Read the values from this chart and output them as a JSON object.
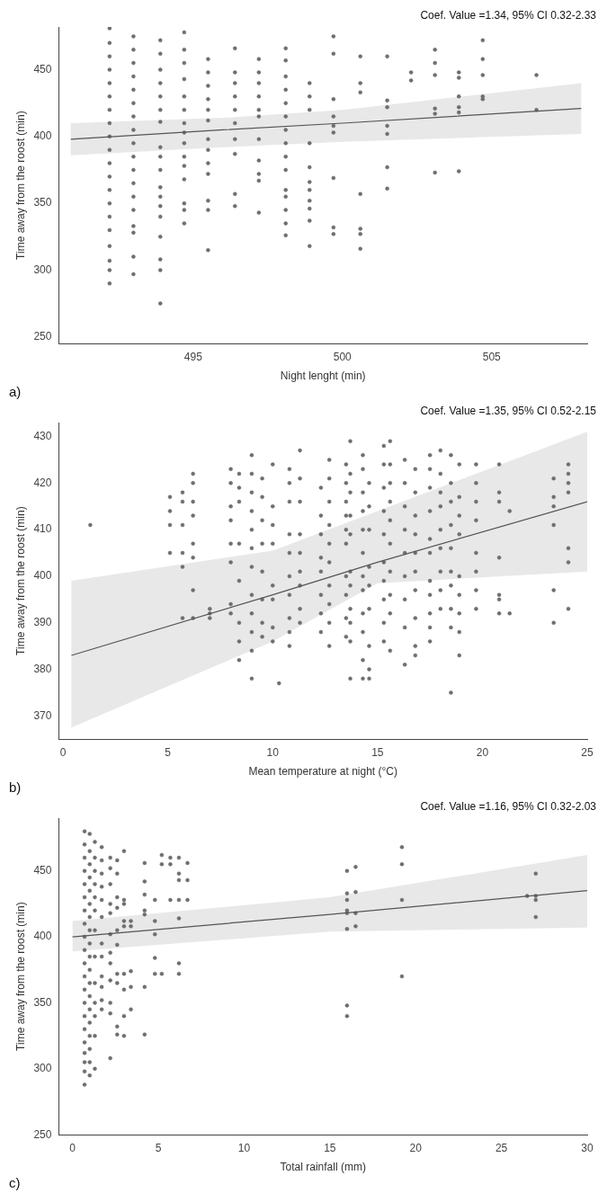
{
  "chart_data": [
    {
      "type": "scatter",
      "xlabel": "Night lenght (min)",
      "ylabel": "Time away from the roost (min)",
      "xlim": [
        490.5,
        508.2
      ],
      "xticks": [
        495,
        500,
        505
      ],
      "ylim": [
        245,
        482
      ],
      "yticks": [
        250,
        300,
        350,
        400,
        450
      ],
      "grid": false,
      "legend": false,
      "annotations": [
        "Coef. Value =1.34, 95% CI 0.32-2.33",
        "a)"
      ],
      "series": [
        {
          "type": "scatter",
          "marker": "circle",
          "color": "#6e6e6e",
          "x": [
            492.2,
            492.2,
            492.2,
            492.2,
            492.2,
            492.2,
            492.2,
            492.2,
            492.2,
            492.2,
            492.2,
            492.2,
            492.2,
            492.2,
            492.2,
            492.2,
            492.2,
            492.2,
            492.2,
            492.2,
            493.0,
            493.0,
            493.0,
            493.0,
            493.0,
            493.0,
            493.0,
            493.0,
            493.0,
            493.0,
            493.0,
            493.0,
            493.0,
            493.0,
            493.0,
            493.0,
            493.0,
            493.0,
            493.9,
            493.9,
            493.9,
            493.9,
            493.9,
            493.9,
            493.9,
            493.9,
            493.9,
            493.9,
            493.9,
            493.9,
            493.9,
            493.9,
            493.9,
            493.9,
            493.9,
            493.9,
            494.7,
            494.7,
            494.7,
            494.7,
            494.7,
            494.7,
            494.7,
            494.7,
            494.7,
            494.7,
            494.7,
            494.7,
            494.7,
            494.7,
            494.7,
            495.5,
            495.5,
            495.5,
            495.5,
            495.5,
            495.5,
            495.5,
            495.5,
            495.5,
            495.5,
            495.5,
            495.5,
            495.5,
            496.4,
            496.4,
            496.4,
            496.4,
            496.4,
            496.4,
            496.4,
            496.4,
            496.4,
            496.4,
            497.2,
            497.2,
            497.2,
            497.2,
            497.2,
            497.2,
            497.2,
            497.2,
            497.2,
            497.2,
            497.2,
            498.1,
            498.1,
            498.1,
            498.1,
            498.1,
            498.1,
            498.1,
            498.1,
            498.1,
            498.1,
            498.1,
            498.1,
            498.1,
            498.1,
            498.1,
            498.9,
            498.9,
            498.9,
            498.9,
            498.9,
            498.9,
            498.9,
            498.9,
            498.9,
            498.9,
            498.9,
            499.7,
            499.7,
            499.7,
            499.7,
            499.7,
            499.7,
            499.7,
            499.7,
            499.7,
            500.6,
            500.6,
            500.6,
            500.6,
            500.6,
            500.6,
            500.6,
            501.5,
            501.5,
            501.5,
            501.5,
            501.5,
            501.5,
            501.5,
            502.3,
            502.3,
            503.1,
            503.1,
            503.1,
            503.1,
            503.1,
            503.1,
            503.9,
            503.9,
            503.9,
            503.9,
            503.9,
            503.9,
            504.7,
            504.7,
            504.7,
            504.7,
            504.7,
            506.5,
            506.5
          ],
          "values": [
            481,
            470,
            460,
            450,
            440,
            430,
            420,
            410,
            400,
            390,
            380,
            370,
            360,
            350,
            340,
            330,
            318,
            307,
            300,
            290,
            475,
            465,
            455,
            445,
            435,
            425,
            415,
            405,
            395,
            385,
            375,
            365,
            355,
            345,
            333,
            328,
            310,
            297,
            472,
            462,
            450,
            440,
            430,
            420,
            411,
            392,
            385,
            375,
            362,
            355,
            348,
            340,
            325,
            308,
            300,
            275,
            478,
            465,
            455,
            443,
            430,
            420,
            410,
            403,
            395,
            385,
            378,
            368,
            350,
            345,
            335,
            458,
            448,
            438,
            428,
            420,
            412,
            398,
            390,
            380,
            372,
            352,
            345,
            315,
            466,
            448,
            440,
            430,
            420,
            410,
            398,
            387,
            357,
            348,
            458,
            448,
            440,
            430,
            420,
            415,
            398,
            382,
            372,
            367,
            343,
            466,
            457,
            445,
            435,
            425,
            415,
            405,
            395,
            385,
            375,
            360,
            355,
            345,
            335,
            326,
            440,
            430,
            420,
            395,
            377,
            366,
            360,
            352,
            346,
            337,
            318,
            475,
            462,
            428,
            415,
            408,
            403,
            369,
            332,
            327,
            460,
            440,
            433,
            357,
            331,
            327,
            316,
            460,
            427,
            422,
            408,
            402,
            377,
            361,
            448,
            442,
            465,
            455,
            446,
            421,
            417,
            373,
            448,
            444,
            430,
            422,
            418,
            374,
            472,
            458,
            446,
            430,
            428,
            446,
            420
          ]
        },
        {
          "type": "line",
          "color": "#555555",
          "x": [
            490.9,
            496,
            500,
            508
          ],
          "values": [
            398,
            405,
            410,
            421
          ],
          "lower": [
            386,
            392,
            396,
            402
          ],
          "upper": [
            410,
            414,
            420,
            440
          ]
        }
      ]
    },
    {
      "type": "scatter",
      "xlabel": "Mean temperature at night (°C)",
      "ylabel": "Time away from the roost (min)",
      "xlim": [
        -0.2,
        25
      ],
      "xticks": [
        0,
        5,
        10,
        15,
        20,
        25
      ],
      "ylim": [
        365,
        433
      ],
      "yticks": [
        370,
        380,
        390,
        400,
        410,
        420,
        430
      ],
      "grid": false,
      "legend": false,
      "annotations": [
        "Coef. Value =1.35, 95% CI 0.52-2.15",
        "b)"
      ],
      "series": [
        {
          "type": "scatter",
          "marker": "circle",
          "color": "#6e6e6e",
          "x": [
            1.3,
            5.1,
            5.1,
            5.1,
            5.1,
            5.7,
            5.7,
            5.7,
            5.7,
            5.7,
            5.7,
            6.2,
            6.2,
            6.2,
            6.2,
            6.2,
            6.2,
            6.2,
            6.2,
            7.0,
            7.0,
            7.0,
            8.0,
            8.0,
            8.0,
            8.0,
            8.0,
            8.0,
            8.0,
            8.0,
            8.4,
            8.4,
            8.4,
            8.4,
            8.4,
            8.4,
            8.4,
            8.4,
            9.0,
            9.0,
            9.0,
            9.0,
            9.0,
            9.0,
            9.0,
            9.0,
            9.0,
            9.0,
            9.0,
            9.0,
            9.5,
            9.5,
            9.5,
            9.5,
            9.5,
            9.5,
            9.5,
            9.5,
            10.0,
            10.0,
            10.0,
            10.0,
            10.0,
            10.0,
            10.0,
            10.0,
            10.3,
            10.8,
            10.8,
            10.8,
            10.8,
            10.8,
            10.8,
            10.8,
            10.8,
            10.8,
            10.8,
            11.3,
            11.3,
            11.3,
            11.3,
            11.3,
            11.3,
            11.3,
            11.3,
            11.3,
            12.3,
            12.3,
            12.3,
            12.3,
            12.3,
            12.3,
            12.3,
            12.3,
            12.7,
            12.7,
            12.7,
            12.7,
            12.7,
            12.7,
            12.7,
            12.7,
            12.7,
            12.7,
            13.5,
            13.5,
            13.5,
            13.5,
            13.5,
            13.5,
            13.5,
            13.5,
            13.5,
            13.5,
            13.7,
            13.7,
            13.7,
            13.7,
            13.7,
            13.7,
            13.7,
            13.7,
            13.7,
            13.7,
            13.7,
            14.3,
            14.3,
            14.3,
            14.3,
            14.3,
            14.3,
            14.3,
            14.3,
            14.3,
            14.3,
            14.3,
            14.3,
            14.6,
            14.6,
            14.6,
            14.6,
            14.6,
            14.6,
            14.6,
            14.6,
            14.6,
            15.3,
            15.3,
            15.3,
            15.3,
            15.3,
            15.3,
            15.3,
            15.3,
            15.3,
            15.3,
            15.6,
            15.6,
            15.6,
            15.6,
            15.6,
            15.6,
            15.6,
            15.6,
            15.6,
            15.6,
            16.3,
            16.3,
            16.3,
            16.3,
            16.3,
            16.3,
            16.3,
            16.3,
            16.3,
            16.8,
            16.8,
            16.8,
            16.8,
            16.8,
            16.8,
            16.8,
            16.8,
            16.8,
            16.8,
            17.5,
            17.5,
            17.5,
            17.5,
            17.5,
            17.5,
            17.5,
            17.5,
            17.5,
            17.5,
            17.5,
            18.0,
            18.0,
            18.0,
            18.0,
            18.0,
            18.0,
            18.0,
            18.0,
            18.0,
            18.5,
            18.5,
            18.5,
            18.5,
            18.5,
            18.5,
            18.5,
            18.5,
            18.5,
            18.5,
            18.9,
            18.9,
            18.9,
            18.9,
            18.9,
            18.9,
            18.9,
            18.9,
            18.9,
            19.7,
            19.7,
            19.7,
            19.7,
            19.7,
            19.7,
            19.7,
            19.7,
            20.8,
            20.8,
            20.8,
            20.8,
            20.8,
            20.8,
            20.8,
            21.3,
            21.3,
            23.4,
            23.4,
            23.4,
            23.4,
            23.4,
            23.4,
            24.1,
            24.1,
            24.1,
            24.1,
            24.1,
            24.1,
            24.1
          ],
          "values": [
            411,
            417,
            414,
            411,
            405,
            418,
            416,
            411,
            405,
            402,
            391,
            422,
            420,
            416,
            413,
            407,
            404,
            397,
            391,
            393,
            392,
            391,
            423,
            420,
            415,
            412,
            407,
            403,
            394,
            392,
            422,
            419,
            416,
            407,
            399,
            390,
            386,
            382,
            426,
            422,
            418,
            414,
            410,
            406,
            402,
            396,
            392,
            388,
            384,
            378,
            421,
            417,
            412,
            407,
            401,
            395,
            390,
            387,
            424,
            415,
            411,
            407,
            398,
            395,
            389,
            386,
            377,
            423,
            420,
            416,
            409,
            405,
            400,
            396,
            391,
            388,
            385,
            427,
            421,
            416,
            409,
            405,
            401,
            398,
            393,
            390,
            419,
            413,
            409,
            404,
            401,
            396,
            392,
            388,
            425,
            421,
            416,
            411,
            407,
            403,
            398,
            394,
            390,
            385,
            424,
            420,
            416,
            413,
            410,
            407,
            400,
            396,
            391,
            387,
            429,
            422,
            418,
            413,
            409,
            401,
            398,
            393,
            390,
            386,
            378,
            426,
            423,
            418,
            414,
            410,
            405,
            400,
            397,
            392,
            388,
            382,
            378,
            420,
            415,
            410,
            402,
            398,
            393,
            385,
            380,
            378,
            428,
            424,
            419,
            414,
            409,
            403,
            399,
            395,
            390,
            386,
            429,
            424,
            420,
            416,
            412,
            407,
            401,
            396,
            392,
            384,
            425,
            420,
            415,
            410,
            405,
            400,
            395,
            389,
            381,
            423,
            418,
            413,
            409,
            405,
            401,
            397,
            391,
            385,
            383,
            426,
            423,
            419,
            414,
            408,
            405,
            399,
            396,
            392,
            389,
            386,
            427,
            422,
            418,
            415,
            410,
            406,
            401,
            397,
            393,
            426,
            420,
            416,
            411,
            406,
            401,
            398,
            393,
            389,
            375,
            424,
            417,
            413,
            409,
            400,
            396,
            392,
            388,
            383,
            424,
            420,
            416,
            412,
            405,
            401,
            397,
            393,
            424,
            418,
            416,
            404,
            396,
            395,
            392,
            414,
            392,
            421,
            417,
            415,
            411,
            397,
            390,
            424,
            422,
            420,
            418,
            406,
            403,
            393
          ]
        },
        {
          "type": "line",
          "color": "#555555",
          "x": [
            0.4,
            10,
            15,
            25
          ],
          "values": [
            383,
            396,
            403,
            416
          ],
          "lower": [
            367.5,
            386,
            398.5,
            401
          ],
          "upper": [
            399,
            405.5,
            414,
            431
          ]
        }
      ]
    },
    {
      "type": "scatter",
      "xlabel": "Total rainfall (mm)",
      "ylabel": "Time away from the roost (min)",
      "xlim": [
        -0.8,
        30
      ],
      "xticks": [
        0,
        5,
        10,
        15,
        20,
        25,
        30
      ],
      "ylim": [
        250,
        490
      ],
      "yticks": [
        250,
        300,
        350,
        400,
        450
      ],
      "grid": false,
      "legend": false,
      "annotations": [
        "Coef. Value =1.16, 95% CI 0.32-2.03",
        "c)"
      ],
      "series": [
        {
          "type": "scatter",
          "marker": "circle",
          "color": "#6e6e6e",
          "x": [
            0.7,
            0.7,
            0.7,
            0.7,
            0.7,
            0.7,
            0.7,
            0.7,
            0.7,
            0.7,
            0.7,
            0.7,
            0.7,
            0.7,
            0.7,
            0.7,
            0.7,
            0.7,
            0.7,
            0.7,
            0.7,
            1.0,
            1.0,
            1.0,
            1.0,
            1.0,
            1.0,
            1.0,
            1.0,
            1.0,
            1.0,
            1.0,
            1.0,
            1.0,
            1.0,
            1.0,
            1.0,
            1.0,
            1.0,
            1.0,
            1.3,
            1.3,
            1.3,
            1.3,
            1.3,
            1.3,
            1.3,
            1.3,
            1.3,
            1.3,
            1.3,
            1.3,
            1.3,
            1.7,
            1.7,
            1.7,
            1.7,
            1.7,
            1.7,
            1.7,
            1.7,
            1.7,
            1.7,
            1.7,
            1.7,
            2.2,
            2.2,
            2.2,
            2.2,
            2.2,
            2.2,
            2.2,
            2.2,
            2.2,
            2.2,
            2.2,
            2.2,
            2.6,
            2.6,
            2.6,
            2.6,
            2.6,
            2.6,
            2.6,
            2.6,
            2.6,
            2.6,
            3.0,
            3.0,
            3.0,
            3.0,
            3.0,
            3.0,
            3.0,
            3.0,
            3.0,
            3.4,
            3.4,
            3.4,
            3.4,
            3.4,
            4.2,
            4.2,
            4.2,
            4.2,
            4.2,
            4.2,
            4.2,
            4.8,
            4.8,
            4.8,
            4.8,
            4.8,
            5.2,
            5.2,
            5.2,
            5.7,
            5.7,
            5.7,
            6.2,
            6.2,
            6.2,
            6.2,
            6.2,
            6.2,
            6.2,
            6.7,
            6.7,
            6.7,
            16.0,
            16.0,
            16.0,
            16.0,
            16.0,
            16.0,
            16.0,
            16.0,
            16.5,
            16.5,
            16.5,
            16.5,
            19.2,
            19.2,
            19.2,
            19.2,
            26.5,
            27.0,
            27.0,
            27.0,
            27.0
          ],
          "values": [
            480,
            470,
            460,
            450,
            440,
            430,
            420,
            410,
            400,
            390,
            380,
            370,
            360,
            350,
            340,
            330,
            320,
            312,
            305,
            298,
            288,
            478,
            465,
            455,
            445,
            435,
            425,
            415,
            405,
            395,
            385,
            375,
            365,
            355,
            345,
            335,
            325,
            315,
            305,
            295,
            472,
            460,
            450,
            440,
            430,
            420,
            405,
            385,
            365,
            350,
            340,
            325,
            300,
            468,
            458,
            448,
            438,
            428,
            415,
            395,
            385,
            370,
            362,
            352,
            345,
            460,
            452,
            440,
            425,
            418,
            402,
            388,
            380,
            367,
            350,
            342,
            308,
            458,
            448,
            430,
            422,
            405,
            394,
            372,
            365,
            332,
            326,
            465,
            428,
            425,
            412,
            408,
            372,
            360,
            340,
            325,
            412,
            408,
            374,
            362,
            345,
            456,
            442,
            432,
            420,
            417,
            362,
            326,
            428,
            412,
            402,
            384,
            372,
            462,
            455,
            372,
            460,
            455,
            428,
            460,
            448,
            443,
            428,
            414,
            380,
            372,
            456,
            443,
            428,
            450,
            433,
            428,
            420,
            418,
            406,
            348,
            340,
            453,
            434,
            418,
            408,
            468,
            455,
            428,
            370,
            431,
            448,
            431,
            428,
            415
          ]
        },
        {
          "type": "line",
          "color": "#555555",
          "x": [
            0,
            15,
            30
          ],
          "values": [
            400,
            417,
            435
          ],
          "lower": [
            389,
            404,
            407
          ],
          "upper": [
            412,
            430,
            462
          ]
        }
      ]
    }
  ]
}
